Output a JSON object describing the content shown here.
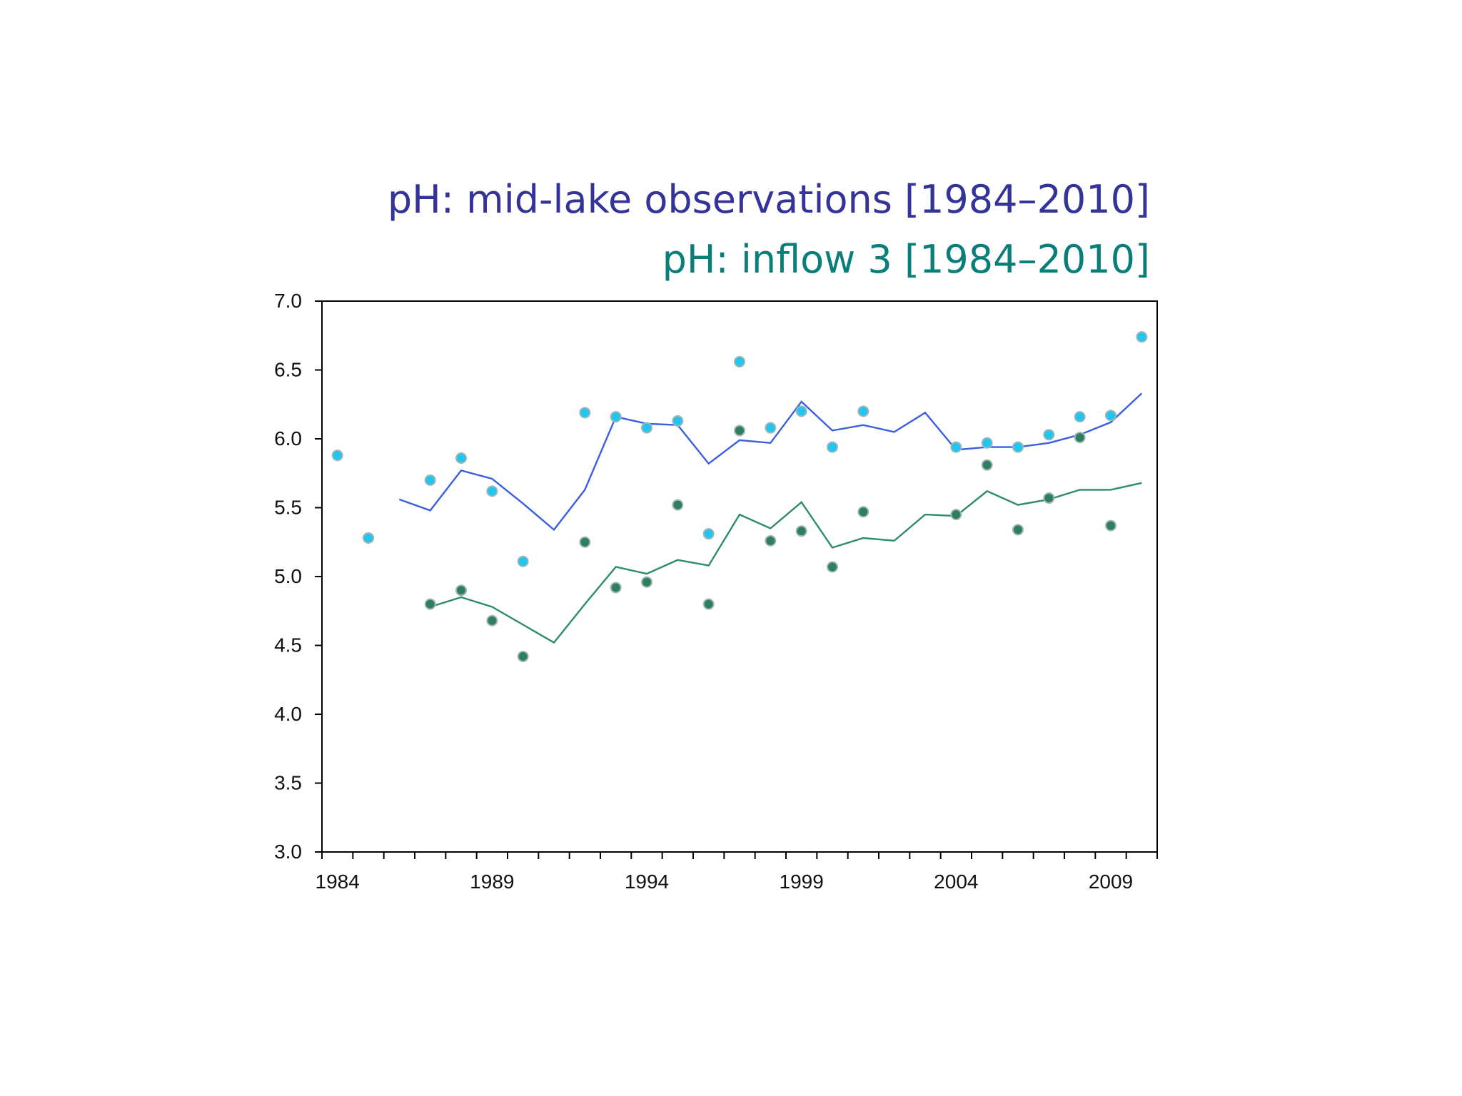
{
  "colors": {
    "title_series1": "#333399",
    "title_series2": "#0a7f7a",
    "series1_line": "#3a5fe0",
    "series1_dot": "#22c4f0",
    "series2_line": "#2e8b6e",
    "series2_dot": "#2f7f5e",
    "axis": "#000000"
  },
  "chart_data": {
    "type": "scatter",
    "title_lines": [
      "pH: mid-lake observations [1984–2010]",
      "pH: inflow 3 [1984–2010]"
    ],
    "xlabel": "",
    "ylabel": "",
    "xlim": [
      1984,
      2011
    ],
    "ylim": [
      3.0,
      7.0
    ],
    "x_tick_labels": [
      "1984",
      "1989",
      "1994",
      "1999",
      "2004",
      "2009"
    ],
    "x_tick_values": [
      1984.5,
      1989.5,
      1994.5,
      1999.5,
      2004.5,
      2009.5
    ],
    "y_tick_labels": [
      "3.0",
      "3.5",
      "4.0",
      "4.5",
      "5.0",
      "5.5",
      "6.0",
      "6.5",
      "7.0"
    ],
    "y_tick_values": [
      3.0,
      3.5,
      4.0,
      4.5,
      5.0,
      5.5,
      6.0,
      6.5,
      7.0
    ],
    "grid": false,
    "series": [
      {
        "points": [
          [
            1984,
            5.88
          ],
          [
            1985,
            5.28
          ],
          [
            1987,
            5.7
          ],
          [
            1988,
            5.86
          ],
          [
            1989,
            5.62
          ],
          [
            1990,
            5.11
          ],
          [
            1992,
            6.19
          ],
          [
            1993,
            6.16
          ],
          [
            1994,
            6.08
          ],
          [
            1995,
            6.13
          ],
          [
            1996,
            5.31
          ],
          [
            1997,
            6.56
          ],
          [
            1998,
            6.08
          ],
          [
            1999,
            6.2
          ],
          [
            2000,
            5.94
          ],
          [
            2001,
            6.2
          ],
          [
            2004,
            5.94
          ],
          [
            2005,
            5.97
          ],
          [
            2006,
            5.94
          ],
          [
            2007,
            6.03
          ],
          [
            2008,
            6.16
          ],
          [
            2009,
            6.17
          ],
          [
            2010,
            6.74
          ]
        ],
        "trend": [
          [
            1986,
            5.56
          ],
          [
            1987,
            5.48
          ],
          [
            1988,
            5.77
          ],
          [
            1989,
            5.71
          ],
          [
            1990,
            5.53
          ],
          [
            1991,
            5.34
          ],
          [
            1992,
            5.63
          ],
          [
            1993,
            6.16
          ],
          [
            1994,
            6.11
          ],
          [
            1995,
            6.1
          ],
          [
            1996,
            5.82
          ],
          [
            1997,
            5.99
          ],
          [
            1998,
            5.97
          ],
          [
            1999,
            6.27
          ],
          [
            2000,
            6.06
          ],
          [
            2001,
            6.1
          ],
          [
            2002,
            6.05
          ],
          [
            2003,
            6.19
          ],
          [
            2004,
            5.92
          ],
          [
            2005,
            5.94
          ],
          [
            2006,
            5.94
          ],
          [
            2007,
            5.97
          ],
          [
            2008,
            6.03
          ],
          [
            2009,
            6.12
          ],
          [
            2010,
            6.33
          ]
        ]
      },
      {
        "points": [
          [
            1987,
            4.8
          ],
          [
            1988,
            4.9
          ],
          [
            1989,
            4.68
          ],
          [
            1990,
            4.42
          ],
          [
            1992,
            5.25
          ],
          [
            1993,
            4.92
          ],
          [
            1994,
            4.96
          ],
          [
            1995,
            5.52
          ],
          [
            1996,
            4.8
          ],
          [
            1997,
            6.06
          ],
          [
            1998,
            5.26
          ],
          [
            1999,
            5.33
          ],
          [
            2000,
            5.07
          ],
          [
            2001,
            5.47
          ],
          [
            2004,
            5.45
          ],
          [
            2005,
            5.81
          ],
          [
            2006,
            5.34
          ],
          [
            2007,
            5.57
          ],
          [
            2008,
            6.01
          ],
          [
            2009,
            5.37
          ]
        ],
        "trend": [
          [
            1987,
            4.78
          ],
          [
            1988,
            4.85
          ],
          [
            1989,
            4.78
          ],
          [
            1990,
            4.65
          ],
          [
            1991,
            4.52
          ],
          [
            1992,
            4.8
          ],
          [
            1993,
            5.07
          ],
          [
            1994,
            5.02
          ],
          [
            1995,
            5.12
          ],
          [
            1996,
            5.08
          ],
          [
            1997,
            5.45
          ],
          [
            1998,
            5.35
          ],
          [
            1999,
            5.54
          ],
          [
            2000,
            5.21
          ],
          [
            2001,
            5.28
          ],
          [
            2002,
            5.26
          ],
          [
            2003,
            5.45
          ],
          [
            2004,
            5.44
          ],
          [
            2005,
            5.62
          ],
          [
            2006,
            5.52
          ],
          [
            2007,
            5.56
          ],
          [
            2008,
            5.63
          ],
          [
            2009,
            5.63
          ],
          [
            2010,
            5.68
          ]
        ]
      }
    ]
  }
}
